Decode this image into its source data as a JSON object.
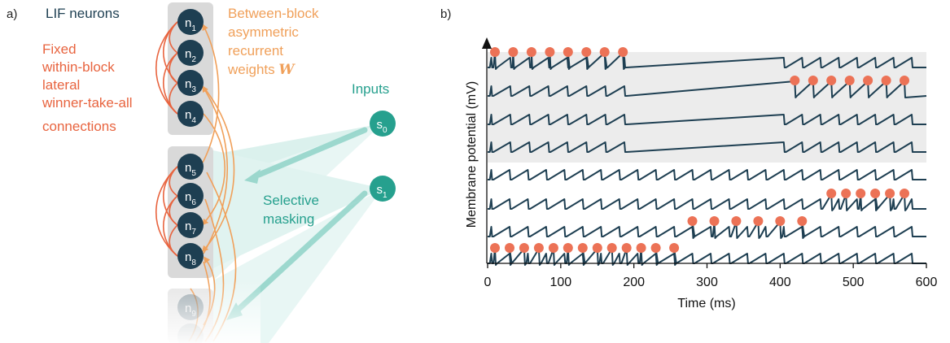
{
  "panel_a": {
    "label": "a)",
    "lif_title": "LIF neurons",
    "wta_lines": [
      "Fixed",
      "within-block",
      "lateral",
      "winner-take-all",
      "connections"
    ],
    "between_lines": [
      "Between-block",
      "asymmetric",
      "recurrent",
      "weights "
    ],
    "between_symbol": "W",
    "inputs_title": "Inputs",
    "masking_lines": [
      "Selective",
      "masking"
    ],
    "neurons": [
      {
        "base": "n",
        "sub": "1"
      },
      {
        "base": "n",
        "sub": "2"
      },
      {
        "base": "n",
        "sub": "3"
      },
      {
        "base": "n",
        "sub": "4"
      },
      {
        "base": "n",
        "sub": "5"
      },
      {
        "base": "n",
        "sub": "6"
      },
      {
        "base": "n",
        "sub": "7"
      },
      {
        "base": "n",
        "sub": "8"
      },
      {
        "base": "n",
        "sub": "9"
      }
    ],
    "inputs": [
      {
        "base": "s",
        "sub": "0"
      },
      {
        "base": "s",
        "sub": "1"
      }
    ]
  },
  "panel_b": {
    "label": "b)",
    "chart_data": {
      "type": "line",
      "xlabel": "Time (ms)",
      "ylabel": "Membrane potential (mV)",
      "xlim": [
        0,
        600
      ],
      "xticks": [
        0,
        100,
        200,
        300,
        400,
        500,
        600
      ],
      "traces": 8,
      "shaded_traces": [
        1,
        2,
        3,
        4
      ],
      "spikes": [
        {
          "trace": 1,
          "times": [
            10,
            35,
            60,
            85,
            110,
            135,
            160,
            185
          ]
        },
        {
          "trace": 2,
          "times": [
            420,
            445,
            470,
            495,
            520,
            545,
            570
          ]
        },
        {
          "trace": 3,
          "times": []
        },
        {
          "trace": 4,
          "times": []
        },
        {
          "trace": 5,
          "times": []
        },
        {
          "trace": 6,
          "times": [
            470,
            490,
            510,
            530,
            550,
            570
          ]
        },
        {
          "trace": 7,
          "times": [
            280,
            310,
            340,
            370,
            400,
            430
          ]
        },
        {
          "trace": 8,
          "times": [
            10,
            30,
            50,
            70,
            90,
            110,
            130,
            150,
            170,
            190,
            210,
            230,
            255
          ]
        }
      ]
    }
  },
  "colors": {
    "neuron": "#1e3f52",
    "block_bg": "#d9d9d9",
    "wta": "#e8643f",
    "between": "#f0a05a",
    "input": "#26a08e",
    "mask": "#8fd3c8",
    "spike": "#ec7256",
    "trace": "#1e3f52",
    "shade": "#ececec"
  }
}
